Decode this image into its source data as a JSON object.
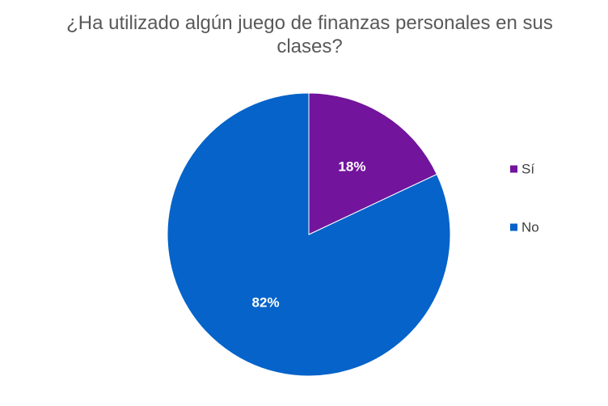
{
  "chart_data": {
    "type": "pie",
    "title": "¿Ha utilizado algún juego de finanzas personales en sus clases?",
    "categories": [
      "Sí",
      "No"
    ],
    "values": [
      18,
      82
    ],
    "data_labels": [
      "18%",
      "82%"
    ],
    "colors": [
      "#72149C",
      "#0563C9"
    ],
    "legend_position": "right",
    "start_angle_deg": 0,
    "direction": "clockwise"
  }
}
